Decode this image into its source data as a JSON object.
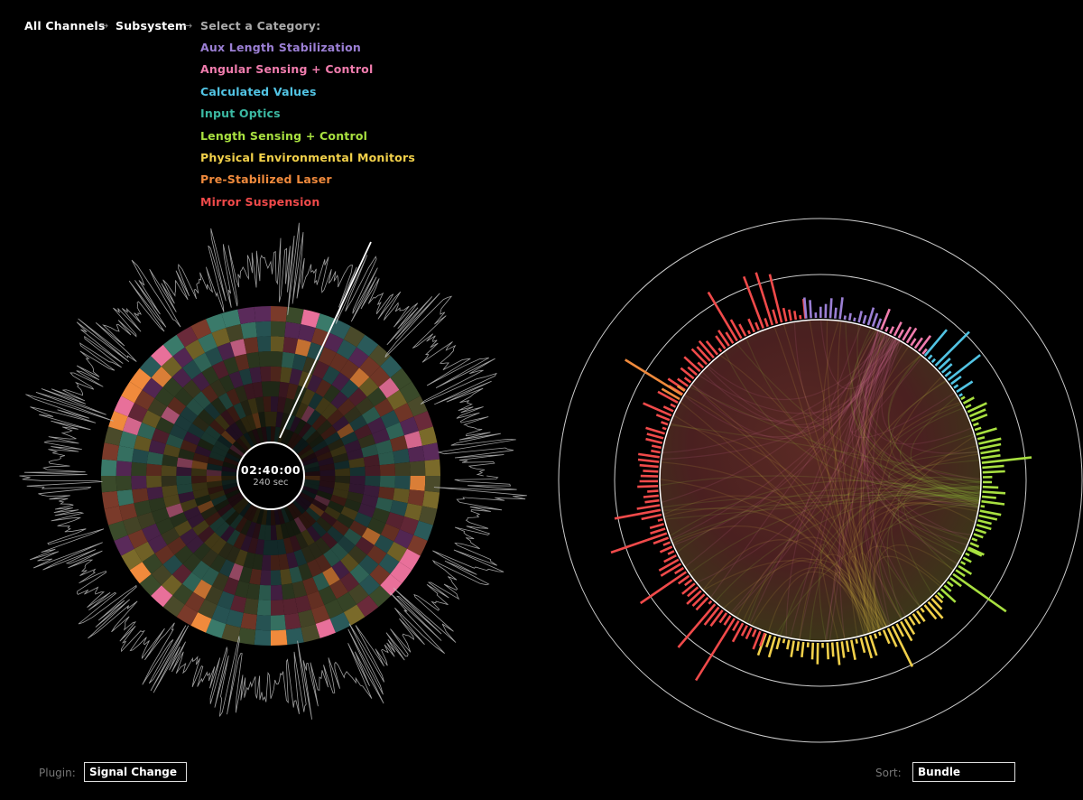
{
  "breadcrumb": {
    "all_channels": "All Channels",
    "subsystem": "Subsystem",
    "select_category": "Select a Category:",
    "separator": "→"
  },
  "categories": [
    {
      "label": "Aux Length Stabilization",
      "color": "#9b7fd4"
    },
    {
      "label": "Angular Sensing + Control",
      "color": "#f07cad"
    },
    {
      "label": "Calculated Values",
      "color": "#52c4e4"
    },
    {
      "label": "Input Optics",
      "color": "#3bb8a2"
    },
    {
      "label": "Length Sensing + Control",
      "color": "#a8e040"
    },
    {
      "label": "Physical Environmental Monitors",
      "color": "#f1d04a"
    },
    {
      "label": "Pre-Stabilized Laser",
      "color": "#f08a3c"
    },
    {
      "label": "Mirror Suspension",
      "color": "#f04a4a"
    }
  ],
  "clock": {
    "time": "02:40:00",
    "duration": "240 sec"
  },
  "controls": {
    "plugin_label": "Plugin:",
    "plugin_value": "Signal Change",
    "sort_label": "Sort:",
    "sort_value": "Bundle"
  }
}
